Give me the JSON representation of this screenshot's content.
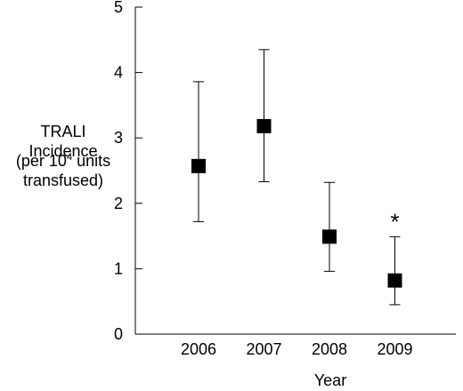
{
  "chart_data": {
    "type": "scatter",
    "error_bars": true,
    "x": [
      "2006",
      "2007",
      "2008",
      "2009"
    ],
    "y": [
      2.57,
      3.18,
      1.49,
      0.82
    ],
    "y_lower": [
      1.72,
      2.33,
      0.96,
      0.45
    ],
    "y_upper": [
      3.86,
      4.35,
      2.32,
      1.49
    ],
    "annotations": [
      {
        "x": "2009",
        "text": "*"
      }
    ],
    "xlabel": "Year",
    "ylabel": {
      "line1": "TRALI",
      "line2": "Incidence",
      "line3_pre": "(per 10",
      "line3_sup": "4",
      "line3_post": " units",
      "line4": "transfused)"
    },
    "ylim": [
      0,
      5
    ],
    "yticks": [
      "0",
      "1",
      "2",
      "3",
      "4",
      "5"
    ],
    "grid": false,
    "marker": "square",
    "color": "#000000"
  }
}
